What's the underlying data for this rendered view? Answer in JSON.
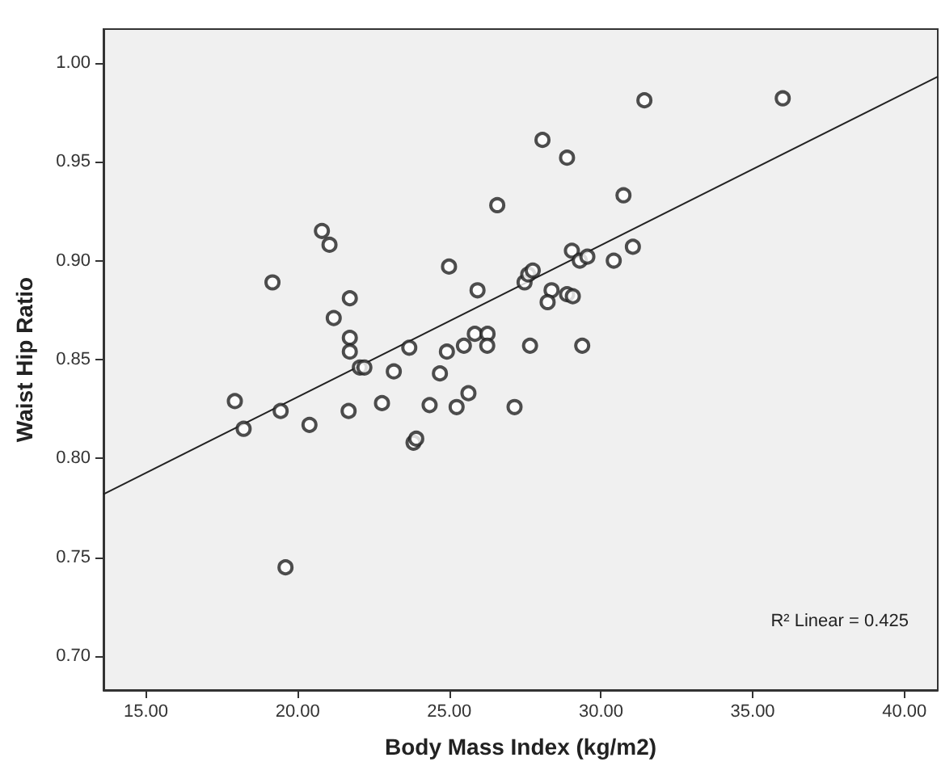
{
  "chart_data": {
    "type": "scatter",
    "xlabel": "Body Mass Index (kg/m2)",
    "ylabel": "Waist Hip Ratio",
    "annotations": [
      "R² Linear = 0.425"
    ],
    "xlim": [
      13.6,
      41.1
    ],
    "ylim": [
      0.683,
      1.017
    ],
    "xticks": [
      {
        "value": 15,
        "label": "15.00"
      },
      {
        "value": 20,
        "label": "20.00"
      },
      {
        "value": 25,
        "label": "25.00"
      },
      {
        "value": 30,
        "label": "30.00"
      },
      {
        "value": 35,
        "label": "35.00"
      },
      {
        "value": 40,
        "label": "40.00"
      }
    ],
    "yticks": [
      {
        "value": 0.7,
        "label": "0.70"
      },
      {
        "value": 0.75,
        "label": "0.75"
      },
      {
        "value": 0.8,
        "label": "0.80"
      },
      {
        "value": 0.85,
        "label": "0.85"
      },
      {
        "value": 0.9,
        "label": "0.90"
      },
      {
        "value": 0.95,
        "label": "0.95"
      },
      {
        "value": 1.0,
        "label": "1.00"
      }
    ],
    "grid": false,
    "series": [
      {
        "marker": "circle",
        "color": "#222222",
        "x": [
          20.8,
          21.05,
          19.17,
          21.72,
          21.19,
          21.72,
          21.72,
          24.99,
          25.93,
          26.58,
          23.68,
          24.92,
          25.48,
          25.84,
          26.26,
          26.25,
          22.05,
          22.2,
          17.93,
          18.22,
          19.44,
          20.39,
          21.68,
          22.78,
          23.17,
          24.69,
          24.35,
          25.24,
          25.63,
          27.15,
          23.82,
          23.91,
          19.6,
          31.43,
          35.99,
          28.07,
          28.88,
          30.74,
          29.04,
          29.3,
          29.55,
          30.42,
          31.05,
          27.48,
          27.6,
          27.75,
          28.37,
          28.24,
          28.88,
          29.07,
          27.66,
          29.38
        ],
        "values": [
          0.915,
          0.908,
          0.889,
          0.881,
          0.871,
          0.861,
          0.854,
          0.897,
          0.885,
          0.928,
          0.856,
          0.854,
          0.857,
          0.863,
          0.863,
          0.857,
          0.846,
          0.846,
          0.829,
          0.815,
          0.824,
          0.817,
          0.824,
          0.828,
          0.844,
          0.843,
          0.827,
          0.826,
          0.833,
          0.826,
          0.808,
          0.81,
          0.745,
          0.981,
          0.982,
          0.961,
          0.952,
          0.933,
          0.905,
          0.9,
          0.902,
          0.9,
          0.907,
          0.889,
          0.893,
          0.895,
          0.885,
          0.879,
          0.883,
          0.882,
          0.857,
          0.857
        ]
      },
      {
        "type": "line",
        "marker": "none",
        "color": "#222222",
        "x": [
          13.6,
          41.1
        ],
        "values": [
          0.782,
          0.993
        ]
      }
    ]
  }
}
